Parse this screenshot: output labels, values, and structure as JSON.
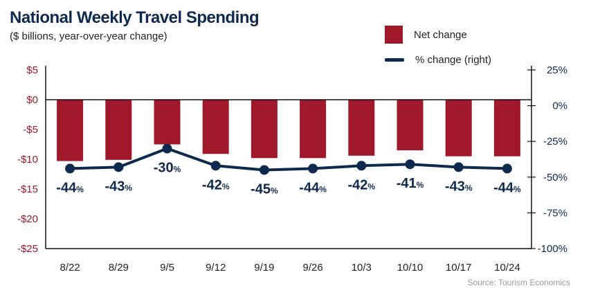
{
  "title": "National Weekly Travel Spending",
  "subtitle": "($ billions, year-over-year change)",
  "source": "Source: Tourism Economics",
  "legend": {
    "bar_label": "Net change",
    "line_label": "% change (right)"
  },
  "colors": {
    "bar": "#a0182a",
    "line": "#0d2a4e",
    "left_axis_text": "#a0182a",
    "right_axis_text": "#0d2a4e"
  },
  "chart_data": {
    "type": "bar",
    "categories": [
      "8/22",
      "8/29",
      "9/5",
      "9/12",
      "9/19",
      "9/26",
      "10/3",
      "10/10",
      "10/17",
      "10/24"
    ],
    "series": [
      {
        "name": "Net change",
        "type": "bar",
        "axis": "left",
        "values": [
          -10.3,
          -10.1,
          -7.5,
          -9.1,
          -9.8,
          -9.8,
          -9.4,
          -8.5,
          -9.5,
          -9.5
        ]
      },
      {
        "name": "% change (right)",
        "type": "line",
        "axis": "right",
        "values": [
          -44,
          -43,
          -30,
          -42,
          -45,
          -44,
          -42,
          -41,
          -43,
          -44
        ]
      }
    ],
    "data_labels": [
      "-44",
      "-43",
      "-30",
      "-42",
      "-45",
      "-44",
      "-42",
      "-41",
      "-43",
      "-44"
    ],
    "data_label_suffix": "%",
    "left_axis": {
      "ylim": [
        -25,
        5
      ],
      "ticks": [
        5,
        0,
        -5,
        -10,
        -15,
        -20,
        -25
      ],
      "tick_labels": [
        "$5",
        "$0",
        "-$5",
        "-$10",
        "-$15",
        "-$20",
        "-$25"
      ]
    },
    "right_axis": {
      "ylim": [
        -100,
        25
      ],
      "ticks": [
        25,
        0,
        -25,
        -50,
        -75,
        -100
      ],
      "tick_labels": [
        "25%",
        "0%",
        "-25%",
        "-50%",
        "-75%",
        "-100%"
      ]
    },
    "grid": false,
    "legend_position": "top-right"
  }
}
